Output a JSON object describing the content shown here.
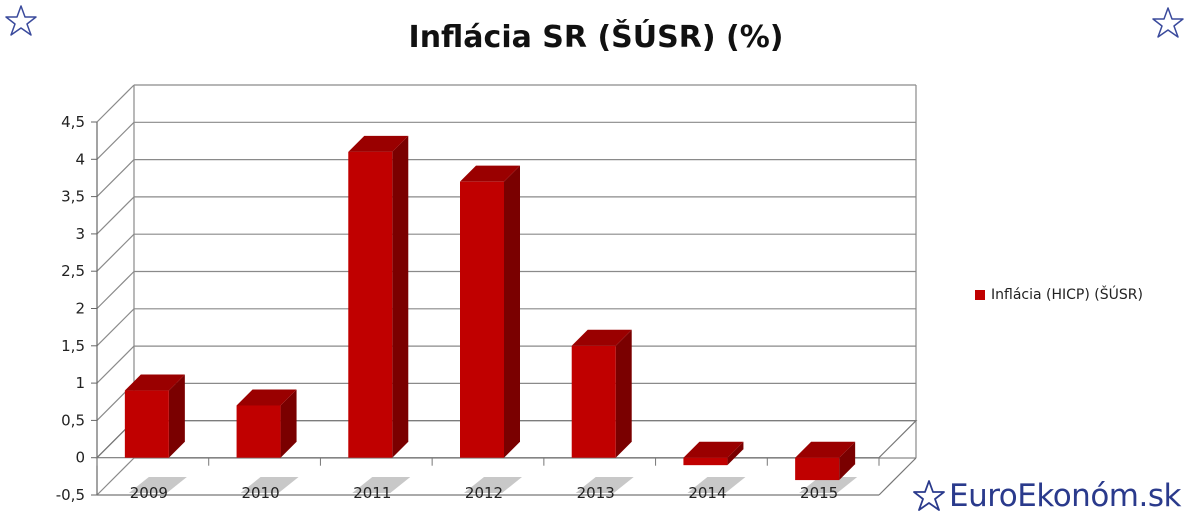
{
  "title": "Inflácia SR (ŠÚSR) (%)",
  "legend": {
    "label": "Inflácia (HICP) (ŠÚSR)",
    "color": "#c00000"
  },
  "brand": {
    "text": "EuroEkonóm.sk",
    "color": "#2a3a8c"
  },
  "chart_data": {
    "type": "bar",
    "title": "Inflácia SR (ŠÚSR) (%)",
    "categories": [
      "2009",
      "2010",
      "2011",
      "2012",
      "2013",
      "2014",
      "2015"
    ],
    "series": [
      {
        "name": "Inflácia (HICP) (ŠÚSR)",
        "values": [
          0.9,
          0.7,
          4.1,
          3.7,
          1.5,
          -0.1,
          -0.3
        ]
      }
    ],
    "ylim": [
      -0.5,
      4.5
    ],
    "yticks": [
      "-0,5",
      "0",
      "0,5",
      "1",
      "1,5",
      "2",
      "2,5",
      "3",
      "3,5",
      "4",
      "4,5"
    ],
    "grid": true,
    "legend_position": "right",
    "bar_color": "#c00000"
  }
}
